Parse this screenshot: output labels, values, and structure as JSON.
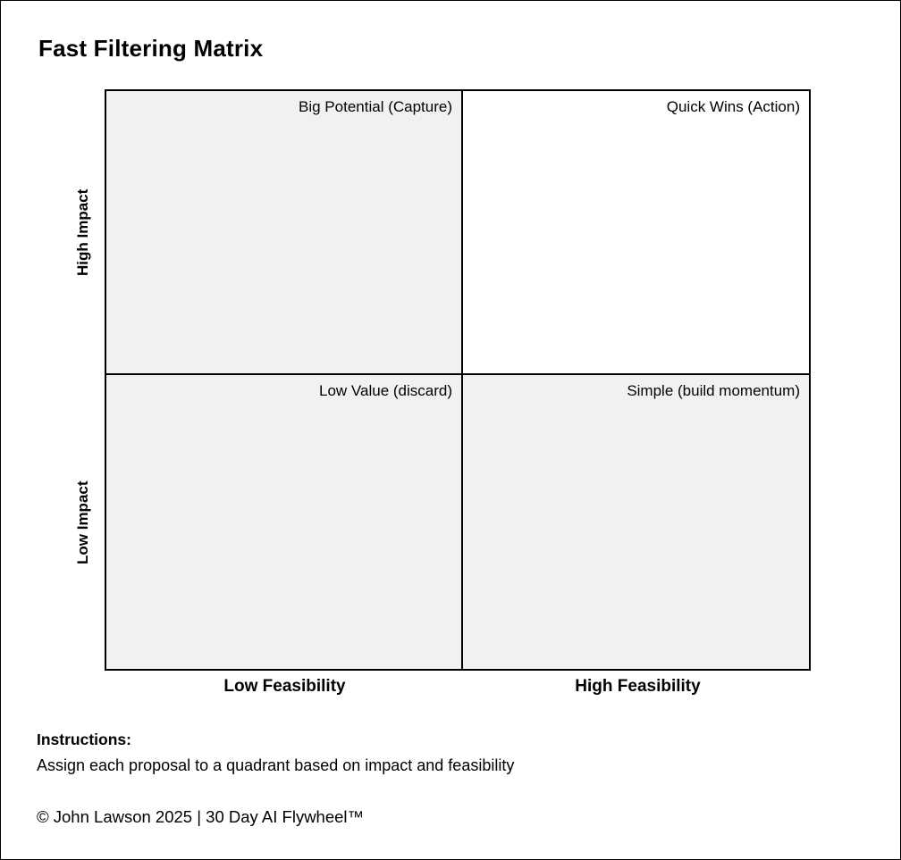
{
  "page": {
    "title": "Fast Filtering Matrix"
  },
  "matrix": {
    "quadrants": [
      {
        "position": "top-left",
        "label": "Big Potential (Capture)",
        "bg": "#f1f1f1"
      },
      {
        "position": "top-right",
        "label": "Quick Wins (Action)",
        "bg": "#ffffff"
      },
      {
        "position": "bottom-left",
        "label": "Low Value (discard)",
        "bg": "#f1f1f1"
      },
      {
        "position": "bottom-right",
        "label": "Simple (build momentum)",
        "bg": "#f1f1f1"
      }
    ],
    "y_axis": {
      "top_label": "High Impact",
      "bottom_label": "Low Impact"
    },
    "x_axis": {
      "left_label": "Low Feasibility",
      "right_label": "High Feasibility"
    }
  },
  "instructions": {
    "heading": "Instructions:",
    "body": "Assign each proposal to a quadrant based on impact and feasibility"
  },
  "footer": {
    "copyright": "© John Lawson 2025 | 30 Day AI Flywheel™"
  },
  "colors": {
    "border": "#000000",
    "quadrant_gray": "#f1f1f1",
    "quadrant_white": "#ffffff",
    "background": "#ffffff",
    "text": "#000000"
  }
}
